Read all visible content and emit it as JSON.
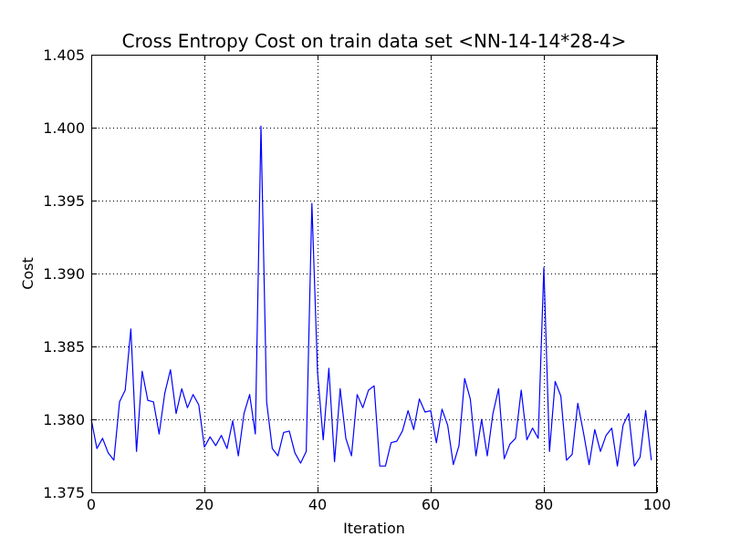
{
  "chart_data": {
    "type": "line",
    "title": "Cross Entropy Cost on train data set <NN-14-14*28-4>",
    "xlabel": "Iteration",
    "ylabel": "Cost",
    "xlim": [
      0,
      100
    ],
    "ylim": [
      1.375,
      1.405
    ],
    "xticks": [
      0,
      20,
      40,
      60,
      80,
      100
    ],
    "yticks": [
      1.375,
      1.38,
      1.385,
      1.39,
      1.395,
      1.4,
      1.405
    ],
    "xtick_labels": [
      "0",
      "20",
      "40",
      "60",
      "80",
      "100"
    ],
    "ytick_labels": [
      "1.375",
      "1.380",
      "1.385",
      "1.390",
      "1.395",
      "1.400",
      "1.405"
    ],
    "grid": true,
    "series": [
      {
        "color": "#0000ff",
        "x": [
          0,
          1,
          2,
          3,
          4,
          5,
          6,
          7,
          8,
          9,
          10,
          11,
          12,
          13,
          14,
          15,
          16,
          17,
          18,
          19,
          20,
          21,
          22,
          23,
          24,
          25,
          26,
          27,
          28,
          29,
          30,
          31,
          32,
          33,
          34,
          35,
          36,
          37,
          38,
          39,
          40,
          41,
          42,
          43,
          44,
          45,
          46,
          47,
          48,
          49,
          50,
          51,
          52,
          53,
          54,
          55,
          56,
          57,
          58,
          59,
          60,
          61,
          62,
          63,
          64,
          65,
          66,
          67,
          68,
          69,
          70,
          71,
          72,
          73,
          74,
          75,
          76,
          77,
          78,
          79,
          80,
          81,
          82,
          83,
          84,
          85,
          86,
          87,
          88,
          89,
          90,
          91,
          92,
          93,
          94,
          95,
          96,
          97,
          98,
          99
        ],
        "y": [
          1.38,
          1.378,
          1.3787,
          1.3777,
          1.3772,
          1.3812,
          1.382,
          1.3862,
          1.3778,
          1.3833,
          1.3813,
          1.3812,
          1.379,
          1.3818,
          1.3834,
          1.3804,
          1.3821,
          1.3808,
          1.3817,
          1.381,
          1.3781,
          1.3788,
          1.3782,
          1.3789,
          1.378,
          1.3799,
          1.3775,
          1.3804,
          1.3817,
          1.379,
          1.4001,
          1.3812,
          1.378,
          1.3775,
          1.3791,
          1.3792,
          1.3777,
          1.377,
          1.3778,
          1.3948,
          1.3832,
          1.3786,
          1.3835,
          1.3771,
          1.3821,
          1.3787,
          1.3775,
          1.3817,
          1.3808,
          1.382,
          1.3823,
          1.3768,
          1.3768,
          1.3784,
          1.3785,
          1.3792,
          1.3806,
          1.3793,
          1.3814,
          1.3805,
          1.3806,
          1.3784,
          1.3807,
          1.3796,
          1.3769,
          1.3782,
          1.3828,
          1.3814,
          1.3775,
          1.38,
          1.3775,
          1.3804,
          1.3821,
          1.3773,
          1.3783,
          1.3787,
          1.382,
          1.3786,
          1.3794,
          1.3787,
          1.3904,
          1.3778,
          1.3826,
          1.3816,
          1.3772,
          1.3776,
          1.3811,
          1.3791,
          1.3769,
          1.3793,
          1.3778,
          1.3789,
          1.3794,
          1.3768,
          1.3796,
          1.3804,
          1.3768,
          1.3774,
          1.3806,
          1.3772
        ]
      }
    ]
  }
}
